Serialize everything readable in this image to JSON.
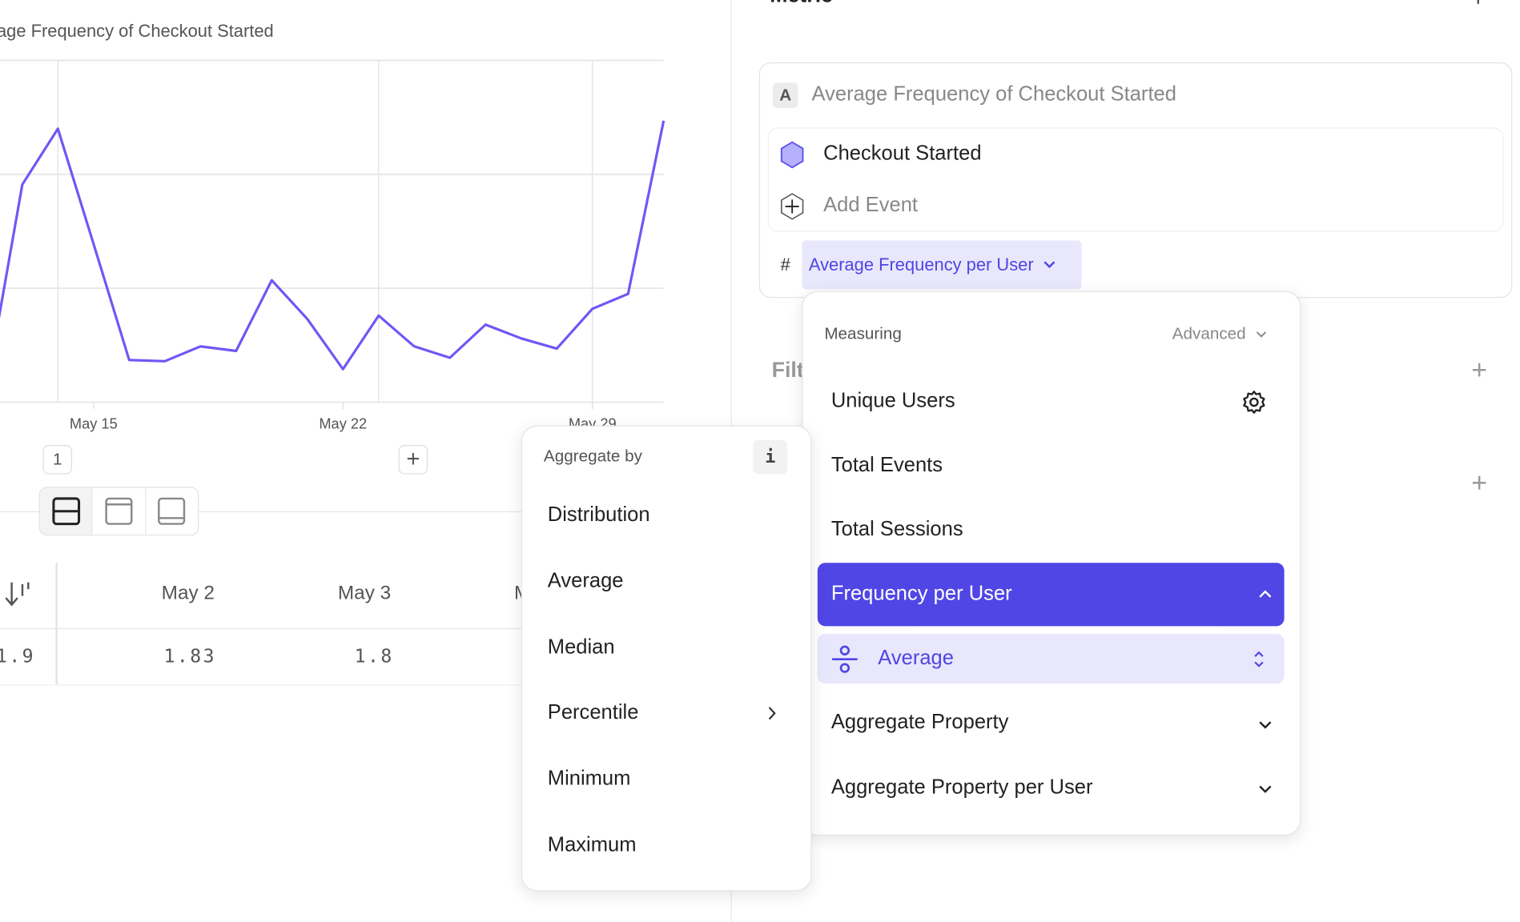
{
  "chart": {
    "title": "Average Frequency of Checkout Started",
    "color": "#7056f5"
  },
  "chart_data": {
    "type": "line",
    "title": "Average Frequency of Checkout Started",
    "x_ticks": [
      "May 15",
      "May 22",
      "May 29"
    ],
    "x": [
      "May 12",
      "May 13",
      "May 14",
      "May 15",
      "May 16",
      "May 17",
      "May 18",
      "May 19",
      "May 20",
      "May 21",
      "May 22",
      "May 23",
      "May 24",
      "May 25",
      "May 26",
      "May 27",
      "May 28",
      "May 29",
      "May 30",
      "May 31"
    ],
    "series": [
      {
        "values": [
          1.613,
          1.791,
          1.84,
          1.739,
          1.637,
          1.636,
          1.649,
          1.645,
          1.707,
          1.673,
          1.629,
          1.676,
          1.649,
          1.639,
          1.668,
          1.656,
          1.647,
          1.682,
          1.695,
          1.847
        ]
      }
    ],
    "ylim": [
      1.6,
      1.9
    ],
    "grid": true
  },
  "pager": {
    "page": "1"
  },
  "table": {
    "headers": [
      "May 2",
      "May 3",
      "M"
    ],
    "first_value": "1.9",
    "values": [
      "1.83",
      "1.8",
      "1"
    ]
  },
  "metric": {
    "heading": "Metric",
    "badge": "A",
    "name": "Average Frequency of Checkout Started",
    "event": "Checkout Started",
    "add_event": "Add Event",
    "hash": "#",
    "measure_label": "Average Frequency per User",
    "filter_label": "Filter"
  },
  "measuring": {
    "header": "Measuring",
    "advanced": "Advanced",
    "items": [
      "Unique Users",
      "Total Events",
      "Total Sessions",
      "Frequency per User",
      "Aggregate Property",
      "Aggregate Property per User"
    ],
    "selected_sub": "Average",
    "accent": "#4f46e5",
    "accent_light": "#e9e7fb"
  },
  "aggregate": {
    "header": "Aggregate by",
    "info": "i",
    "items": [
      "Distribution",
      "Average",
      "Median",
      "Percentile",
      "Minimum",
      "Maximum"
    ]
  }
}
